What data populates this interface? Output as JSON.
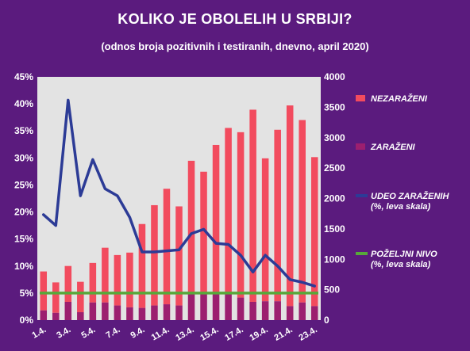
{
  "title": "KOLIKO JE OBOLELIH U SRBIJI?",
  "subtitle": "(odnos broja pozitivnih i testiranih, dnevno, april 2020)",
  "colors": {
    "background": "#5b1b7e",
    "plot_bg": "#e3e3e3",
    "negative": "#f24b5e",
    "positive": "#9c1f6f",
    "share_line": "#2c3b96",
    "desired_level": "#57a83a"
  },
  "chart_data": {
    "type": "bar",
    "categories": [
      "1.4.",
      "2.4.",
      "3.4.",
      "4.4.",
      "5.4.",
      "6.4.",
      "7.4.",
      "8.4.",
      "9.4.",
      "10.4.",
      "11.4.",
      "12.4.",
      "13.4.",
      "14.4.",
      "15.4.",
      "16.4.",
      "17.4.",
      "18.4.",
      "19.4.",
      "20.4.",
      "21.4.",
      "22.4.",
      "23.4."
    ],
    "x_tick_labels": [
      "1.4.",
      "3.4.",
      "5.4.",
      "7.4.",
      "9.4.",
      "11.4.",
      "13.4.",
      "15.4.",
      "17.4.",
      "19.4.",
      "21.4.",
      "23.4."
    ],
    "series": [
      {
        "name": "NEZARAŽENI",
        "type": "bar",
        "axis": "right",
        "stacked": true,
        "values": [
          640,
          500,
          590,
          500,
          650,
          900,
          830,
          900,
          1380,
          1650,
          1900,
          1630,
          2190,
          2000,
          2430,
          2720,
          2720,
          3160,
          2350,
          2820,
          3300,
          3000,
          2450
        ]
      },
      {
        "name": "ZARAŽENI",
        "type": "bar",
        "axis": "right",
        "stacked": true,
        "values": [
          160,
          120,
          300,
          130,
          290,
          290,
          240,
          210,
          200,
          240,
          260,
          240,
          430,
          440,
          450,
          440,
          370,
          300,
          310,
          310,
          230,
          290,
          230
        ]
      },
      {
        "name": "UDEO ZARAŽENIH (%, leva skala)",
        "type": "line",
        "axis": "left",
        "values": [
          19.5,
          17.5,
          40.7,
          23,
          29.7,
          24.3,
          23,
          19,
          12.6,
          12.6,
          12.8,
          13,
          16,
          16.8,
          14.2,
          14,
          12,
          8.9,
          12,
          10,
          7.5,
          7,
          6.3
        ]
      },
      {
        "name": "POŽELJNI NIVO (%, leva skala)",
        "type": "line",
        "axis": "left",
        "values": [
          5,
          5,
          5,
          5,
          5,
          5,
          5,
          5,
          5,
          5,
          5,
          5,
          5,
          5,
          5,
          5,
          5,
          5,
          5,
          5,
          5,
          5,
          5
        ]
      }
    ],
    "y_left": {
      "min": 0,
      "max": 45,
      "step": 5,
      "tick_labels": [
        "0%",
        "5%",
        "10%",
        "15%",
        "20%",
        "25%",
        "30%",
        "35%",
        "40%",
        "45%"
      ]
    },
    "y_right": {
      "min": 0,
      "max": 4000,
      "step": 500,
      "tick_labels": [
        "0",
        "500",
        "1000",
        "1500",
        "2000",
        "2500",
        "3000",
        "3500",
        "4000"
      ]
    },
    "legend": [
      {
        "label_lines": [
          "NEZARAŽENI"
        ],
        "color_key": "negative",
        "swatch": "box"
      },
      {
        "label_lines": [
          "ZARAŽENI"
        ],
        "color_key": "positive",
        "swatch": "box"
      },
      {
        "label_lines": [
          "UDEO ZARAŽENIH",
          "(%, leva skala)"
        ],
        "color_key": "share_line",
        "swatch": "line"
      },
      {
        "label_lines": [
          "POŽELJNI NIVO",
          "(%, leva skala)"
        ],
        "color_key": "desired_level",
        "swatch": "line"
      }
    ],
    "legend_position": "right",
    "grid": false
  }
}
